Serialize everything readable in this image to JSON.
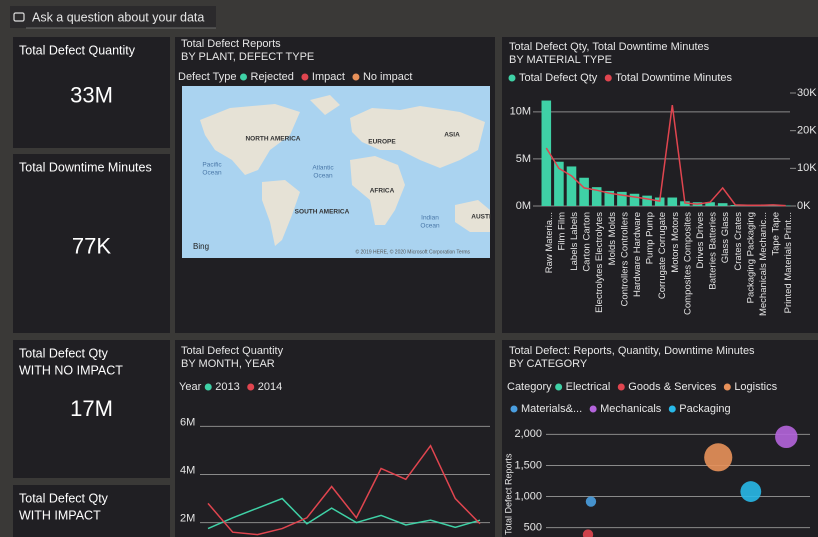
{
  "qa_prompt": "Ask a question about your data",
  "cards": [
    {
      "label_lines": [
        "Total Defect Quantity"
      ],
      "value": "33M"
    },
    {
      "label_lines": [
        "Total Downtime Minutes"
      ],
      "value": "77K"
    },
    {
      "label_lines": [
        "Total Defect Qty",
        "WITH NO IMPACT"
      ],
      "value": "17M"
    },
    {
      "label_lines": [
        "Total Defect Qty",
        "WITH IMPACT"
      ]
    }
  ],
  "chart_data": [
    {
      "type": "map",
      "title": "Total Defect Reports",
      "subtitle": "BY PLANT, DEFECT TYPE",
      "legend_title": "Defect Type",
      "series": [
        {
          "name": "Rejected",
          "color": "#3fd1a6"
        },
        {
          "name": "Impact",
          "color": "#e0454f"
        },
        {
          "name": "No impact",
          "color": "#e8915a"
        }
      ],
      "map_labels": [
        "NORTH AMERICA",
        "EUROPE",
        "ASIA",
        "AFRICA",
        "SOUTH AMERICA",
        "AUSTI"
      ],
      "ocean_labels": [
        [
          "Pacific",
          "Ocean"
        ],
        [
          "Atlantic",
          "Ocean"
        ],
        [
          "Indian",
          "Ocean"
        ]
      ],
      "attribution": "© 2019 HERE, © 2020 Microsoft Corporation Terms",
      "provider": "Bing"
    },
    {
      "type": "combo",
      "title": "Total Defect Qty, Total Downtime Minutes",
      "subtitle": "BY MATERIAL TYPE",
      "categories": [
        "Raw Materia...",
        "Film Film",
        "Labels Labels",
        "Carton Carton",
        "Electrolytes Electrolytes",
        "Molds Molds",
        "Controllers Controllers",
        "Hardware Hardware",
        "Pump Pump",
        "Corrugate Corrugate",
        "Motors Motors",
        "Composites Composites",
        "Drives Drives",
        "Batteries Batteries",
        "Glass Glass",
        "Crates Crates",
        "Packaging Packaging",
        "Mechanicals Mechanic...",
        "Tape Tape",
        "Printed Materials Print..."
      ],
      "series": [
        {
          "name": "Total Defect Qty",
          "color": "#3fd1a6",
          "mark": "bar",
          "values": [
            11200000,
            4700000,
            4200000,
            3000000,
            2000000,
            1600000,
            1500000,
            1300000,
            1100000,
            900000,
            900000,
            500000,
            400000,
            400000,
            300000,
            100000,
            100000,
            100000,
            50000,
            50000
          ]
        },
        {
          "name": "Total Downtime Minutes",
          "color": "#e0454f",
          "mark": "line",
          "axis": "y2",
          "values": [
            15400,
            10000,
            8000,
            4800,
            4200,
            3400,
            2900,
            2400,
            1900,
            1300,
            26800,
            800,
            500,
            1000,
            4800,
            300,
            200,
            200,
            300,
            100
          ]
        }
      ],
      "ylim": [
        0,
        12000000
      ],
      "yticks": [
        {
          "value": 0,
          "label": "0M"
        },
        {
          "value": 5000000,
          "label": "5M"
        },
        {
          "value": 10000000,
          "label": "10M"
        }
      ],
      "y2lim": [
        0,
        30000
      ],
      "y2ticks": [
        {
          "value": 0,
          "label": "0K"
        },
        {
          "value": 10000,
          "label": "10K"
        },
        {
          "value": 20000,
          "label": "20K"
        },
        {
          "value": 30000,
          "label": "30K"
        }
      ],
      "grid": true
    },
    {
      "type": "line",
      "title": "Total Defect Quantity",
      "subtitle": "BY MONTH, YEAR",
      "legend_title": "Year",
      "categories": [
        null,
        null,
        null,
        null,
        null,
        null,
        null,
        null,
        null,
        null,
        null,
        null
      ],
      "series": [
        {
          "name": "2013",
          "color": "#3fd1a6",
          "values": [
            1750000,
            2200000,
            2600000,
            3000000,
            1950000,
            2600000,
            2000000,
            2300000,
            1900000,
            2100000,
            1800000,
            2100000
          ]
        },
        {
          "name": "2014",
          "color": "#e0454f",
          "values": [
            2800000,
            1600000,
            1500000,
            1750000,
            2200000,
            3500000,
            2200000,
            4250000,
            3800000,
            5200000,
            3000000,
            1950000
          ]
        }
      ],
      "ylim": [
        1400000,
        6600000
      ],
      "yticks": [
        {
          "value": 2000000,
          "label": "2M"
        },
        {
          "value": 4000000,
          "label": "4M"
        },
        {
          "value": 6000000,
          "label": "6M"
        }
      ],
      "grid": true
    },
    {
      "type": "scatter",
      "title": "Total Defect: Reports, Quantity, Downtime Minutes",
      "subtitle": "BY CATEGORY",
      "legend_title": "Category",
      "y_label": "Total Defect Reports",
      "series": [
        {
          "name": "Electrical",
          "color": "#3fd1a6",
          "x": [],
          "values": [],
          "sizes": []
        },
        {
          "name": "Goods & Services",
          "color": "#e0454f",
          "x": [
            25
          ],
          "values": [
            390
          ],
          "sizes": [
            3
          ]
        },
        {
          "name": "Logistics",
          "color": "#e8915a",
          "x": [
            69
          ],
          "values": [
            1630
          ],
          "sizes": [
            22
          ]
        },
        {
          "name": "Materials&...",
          "color": "#4a9ee0",
          "x": [
            26
          ],
          "values": [
            920
          ],
          "sizes": [
            3
          ]
        },
        {
          "name": "Mechanicals",
          "color": "#b464dc",
          "x": [
            92
          ],
          "values": [
            1960
          ],
          "sizes": [
            14
          ]
        },
        {
          "name": "Packaging",
          "color": "#28b8e8",
          "x": [
            80
          ],
          "values": [
            1080
          ],
          "sizes": [
            12
          ]
        }
      ],
      "xlim": [
        0,
        100
      ],
      "ylim": [
        350,
        2150
      ],
      "yticks": [
        500,
        {
          "value": 1000,
          "label": "1,000"
        },
        {
          "value": 1500,
          "label": "1,500"
        },
        {
          "value": 2000,
          "label": "2,000"
        }
      ],
      "grid": true
    }
  ]
}
